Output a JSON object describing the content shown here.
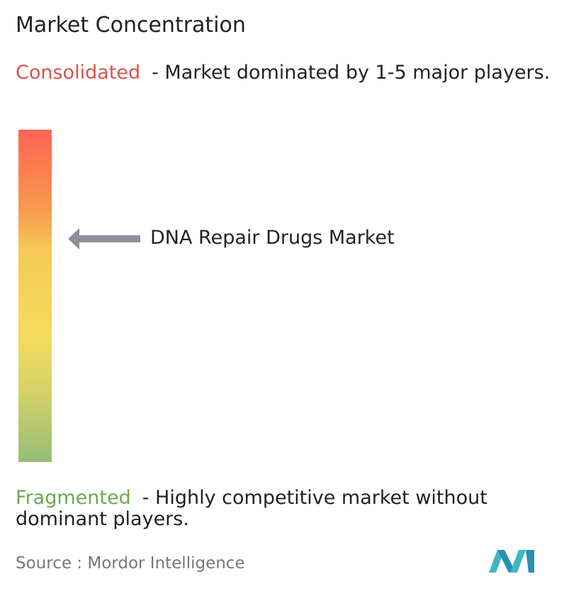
{
  "header": {
    "title": "Market Concentration"
  },
  "consolidated": {
    "label": "Consolidated",
    "description": "- Market dominated by 1-5 major players."
  },
  "marker": {
    "label": "DNA Repair Drugs Market"
  },
  "fragmented": {
    "label": "Fragmented",
    "description": "- Highly competitive market without dominant players."
  },
  "source": {
    "label": "Source :",
    "name": "Mordor Intelligence"
  }
}
